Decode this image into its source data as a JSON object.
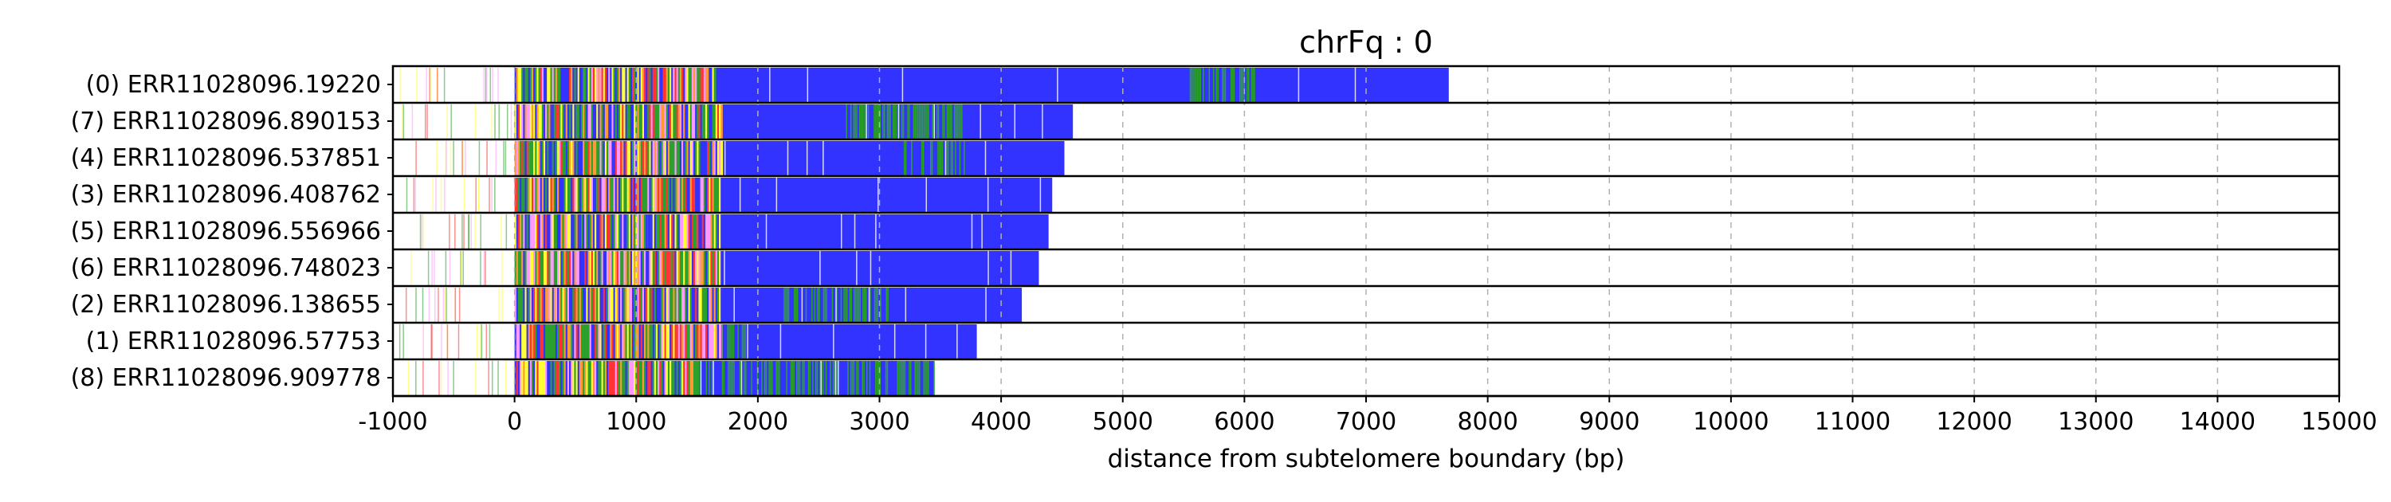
{
  "chart_data": {
    "type": "bar",
    "title": "chrFq : 0",
    "xlabel": "distance from subtelomere boundary (bp)",
    "ylabel": "",
    "xlim": [
      -1000,
      15000
    ],
    "xticks": [
      -1000,
      0,
      1000,
      2000,
      3000,
      4000,
      5000,
      6000,
      7000,
      8000,
      9000,
      10000,
      11000,
      12000,
      13000,
      14000,
      15000
    ],
    "xtick_labels": [
      "-1000",
      "0",
      "1000",
      "2000",
      "3000",
      "4000",
      "5000",
      "6000",
      "7000",
      "8000",
      "9000",
      "10000",
      "11000",
      "12000",
      "13000",
      "14000",
      "15000"
    ],
    "grid": "vertical dashed",
    "colors": {
      "telomere_repeat": "#3333ff",
      "variant_repeat": "#2ca02c",
      "yellow_kmer": "#ffff33",
      "pink_kmer": "#ff99ff",
      "red_kmer": "#ff3333",
      "orange_kmer": "#ff9933",
      "separator": "#000000"
    },
    "reads": [
      {
        "label": "(0) ERR11028096.19220",
        "end": 7680,
        "blue_from": 1650,
        "green": [
          [
            5550,
            6150
          ]
        ],
        "stripes": 0
      },
      {
        "label": "(7) ERR11028096.890153",
        "end": 4590,
        "blue_from": 1700,
        "green": [
          [
            2700,
            3700
          ]
        ],
        "stripes": 1
      },
      {
        "label": "(4) ERR11028096.537851",
        "end": 4520,
        "blue_from": 1700,
        "green": [
          [
            3200,
            3700
          ]
        ],
        "stripes": 2
      },
      {
        "label": "(3) ERR11028096.408762",
        "end": 4420,
        "blue_from": 1700,
        "green": [],
        "stripes": 3
      },
      {
        "label": "(5) ERR11028096.556966",
        "end": 4390,
        "blue_from": 1700,
        "green": [],
        "stripes": 4
      },
      {
        "label": "(6) ERR11028096.748023",
        "end": 4310,
        "blue_from": 1700,
        "green": [],
        "stripes": 5
      },
      {
        "label": "(2) ERR11028096.138655",
        "end": 4170,
        "blue_from": 1700,
        "green": [
          [
            2200,
            3100
          ]
        ],
        "stripes": 6
      },
      {
        "label": "(1) ERR11028096.57753",
        "end": 3800,
        "blue_from": 1700,
        "green": [
          [
            1700,
            1900
          ]
        ],
        "stripes": 7
      },
      {
        "label": "(8) ERR11028096.909778",
        "end": 3450,
        "blue_from": 1500,
        "green": [
          [
            1500,
            3450
          ]
        ],
        "stripes": 8
      }
    ]
  }
}
